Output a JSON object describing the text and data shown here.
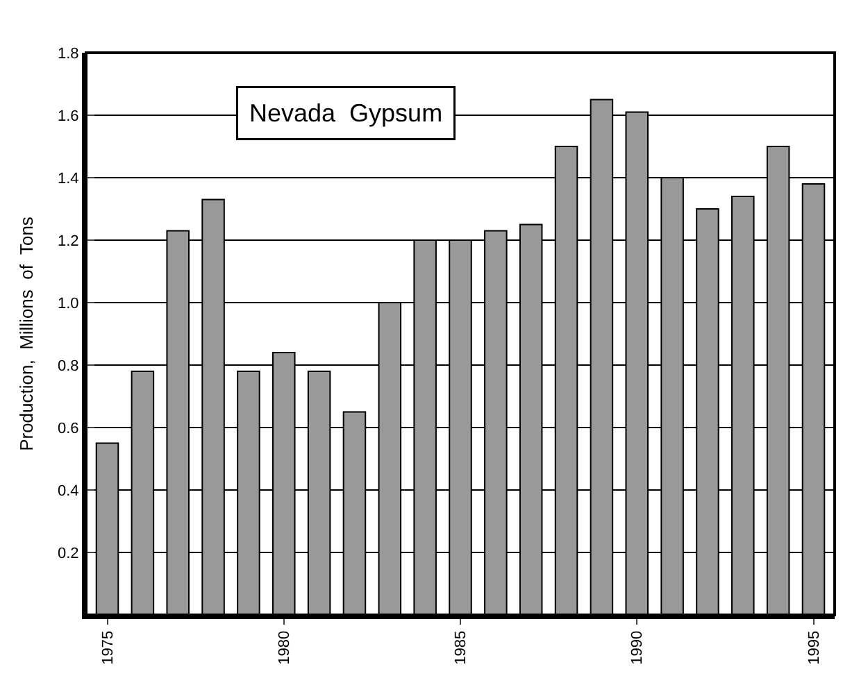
{
  "chart_data": {
    "type": "bar",
    "title": "Nevada  Gypsum",
    "ylabel": "Production,  Millions  of  Tons",
    "x": [
      1975,
      1976,
      1977,
      1978,
      1979,
      1980,
      1981,
      1982,
      1983,
      1984,
      1985,
      1986,
      1987,
      1988,
      1989,
      1990,
      1991,
      1992,
      1993,
      1994,
      1995
    ],
    "values": [
      0.55,
      0.78,
      1.23,
      1.33,
      0.78,
      0.84,
      0.78,
      0.65,
      1.0,
      1.2,
      1.2,
      1.23,
      1.25,
      1.5,
      1.65,
      1.61,
      1.4,
      1.3,
      1.34,
      1.5,
      1.38
    ],
    "color": "#999999",
    "xlim": [
      1974.4,
      1995.6
    ],
    "xticks": [
      1975,
      1980,
      1985,
      1990,
      1995
    ],
    "ylim": [
      0,
      1.8
    ],
    "yticks": [
      {
        "value": 0,
        "label": null
      },
      0.2,
      0.4,
      0.6,
      0.8,
      {
        "value": 1,
        "label": "1.0"
      },
      1.2,
      1.4,
      1.6,
      1.8
    ],
    "grid": "y",
    "legend": false
  }
}
